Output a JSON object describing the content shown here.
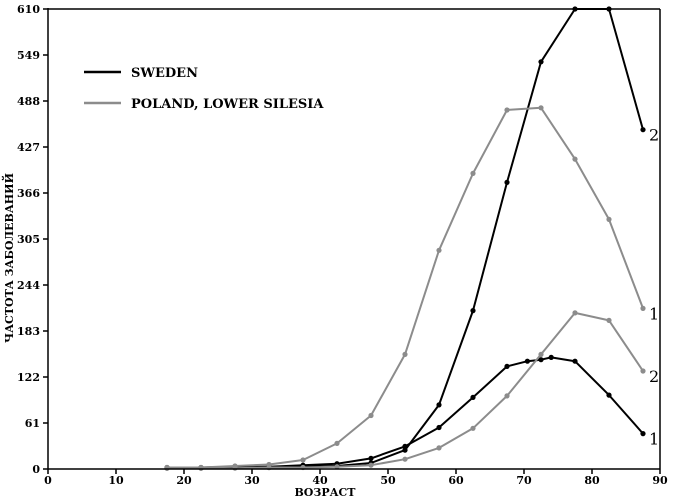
{
  "chart_data": {
    "type": "line",
    "title": "",
    "xlabel": "ВОЗРАСТ",
    "ylabel": "ЧАСТОТА ЗАБОЛЕВАНИЙ",
    "xlim": [
      0,
      90
    ],
    "ylim": [
      0,
      610
    ],
    "xticks": [
      0,
      10,
      20,
      30,
      40,
      50,
      60,
      70,
      80,
      90
    ],
    "yticks": [
      0,
      61,
      122,
      183,
      244,
      305,
      366,
      427,
      488,
      549,
      610
    ],
    "grid": false,
    "legend": {
      "placement": "top-left",
      "entries": [
        {
          "label": "SWEDEN",
          "color": "#000000"
        },
        {
          "label": "POLAND, LOWER SILESIA",
          "color": "#8c8c8c"
        }
      ]
    },
    "series": [
      {
        "group": "SWEDEN",
        "end_label": "2",
        "color": "#000000",
        "x": [
          17.5,
          22.5,
          27.5,
          32.5,
          37.5,
          42.5,
          47.5,
          52.5,
          57.5,
          62.5,
          67.5,
          72.5,
          77.5,
          82.5,
          87.5
        ],
        "y": [
          1,
          1,
          2,
          2,
          3,
          4,
          8,
          25,
          85,
          210,
          380,
          540,
          610,
          610,
          450
        ]
      },
      {
        "group": "SWEDEN",
        "end_label": "1",
        "color": "#000000",
        "x": [
          17.5,
          22.5,
          27.5,
          32.5,
          37.5,
          42.5,
          47.5,
          52.5,
          57.5,
          62.5,
          67.5,
          70.5,
          72.5,
          74,
          77.5,
          82.5,
          87.5
        ],
        "y": [
          2,
          2,
          3,
          3,
          5,
          7,
          14,
          30,
          55,
          95,
          136,
          143,
          145,
          148,
          143,
          98,
          47
        ]
      },
      {
        "group": "POLAND, LOWER SILESIA",
        "end_label": "1",
        "color": "#8c8c8c",
        "x": [
          17.5,
          22.5,
          27.5,
          32.5,
          37.5,
          42.5,
          47.5,
          52.5,
          57.5,
          62.5,
          67.5,
          72.5,
          77.5,
          82.5,
          87.5
        ],
        "y": [
          2,
          2,
          4,
          6,
          12,
          34,
          71,
          152,
          290,
          392,
          476,
          479,
          411,
          331,
          213
        ]
      },
      {
        "group": "POLAND, LOWER SILESIA",
        "end_label": "2",
        "color": "#8c8c8c",
        "x": [
          17.5,
          22.5,
          27.5,
          32.5,
          37.5,
          42.5,
          47.5,
          52.5,
          57.5,
          62.5,
          67.5,
          72.5,
          77.5,
          82.5,
          87.5
        ],
        "y": [
          1,
          1,
          1,
          2,
          2,
          3,
          5,
          13,
          28,
          54,
          97,
          152,
          207,
          197,
          130
        ]
      }
    ]
  }
}
